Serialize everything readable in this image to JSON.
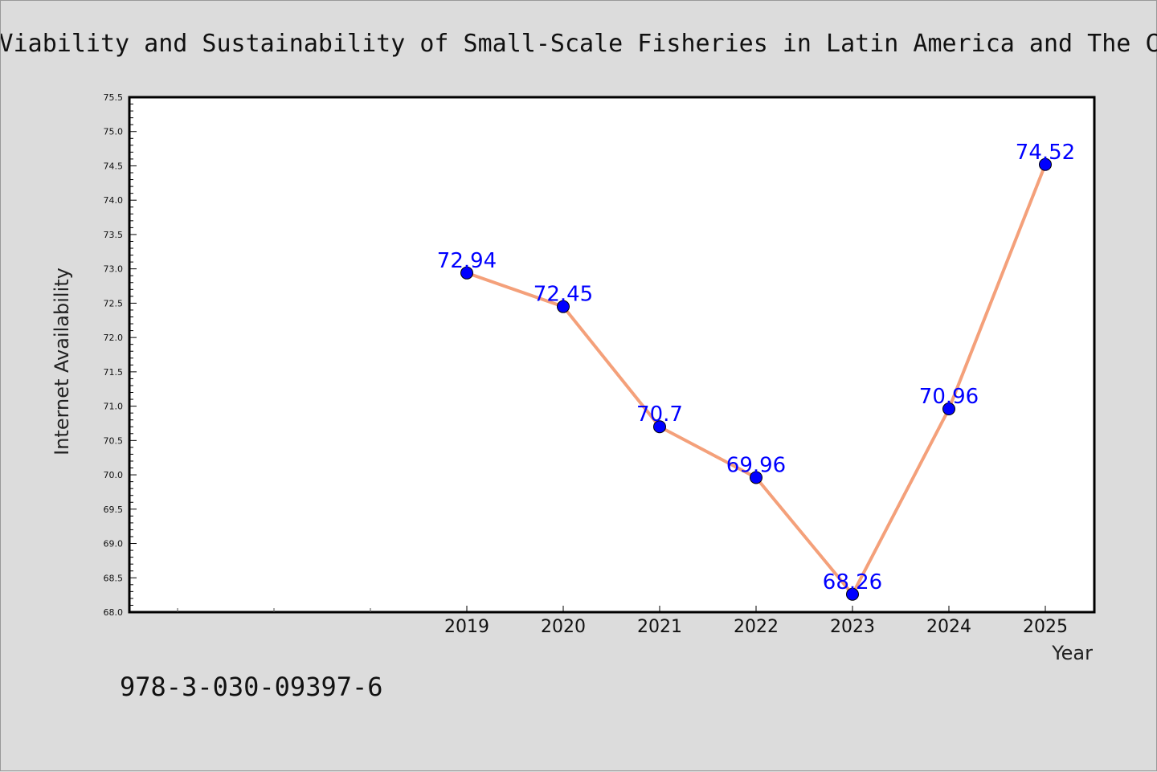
{
  "chart_data": {
    "type": "line",
    "title": "Viability and Sustainability of Small-Scale Fisheries in Latin America and The C",
    "xlabel": "Year",
    "ylabel": "Internet Availability",
    "x": [
      "2019",
      "2020",
      "2021",
      "2022",
      "2023",
      "2024",
      "2025"
    ],
    "values": [
      72.94,
      72.45,
      70.7,
      69.96,
      68.26,
      70.96,
      74.52
    ],
    "data_labels": [
      "72.94",
      "72.45",
      "70.7",
      "69.96",
      "68.26",
      "70.96",
      "74.52"
    ],
    "ylim": [
      68.0,
      75.5
    ],
    "yticks": [
      "68.0",
      "68.5",
      "69.0",
      "69.5",
      "70.0",
      "70.5",
      "71.0",
      "71.5",
      "72.0",
      "72.5",
      "73.0",
      "73.5",
      "74.0",
      "74.5",
      "75.0",
      "75.5"
    ],
    "grid": false,
    "legend": "none",
    "colors": {
      "line": "#f4a07a",
      "marker": "#0000ff",
      "label": "#0000ff",
      "background": "#dcdcdc",
      "plot_background": "#ffffff"
    }
  },
  "footer": {
    "isbn": "978-3-030-09397-6"
  }
}
